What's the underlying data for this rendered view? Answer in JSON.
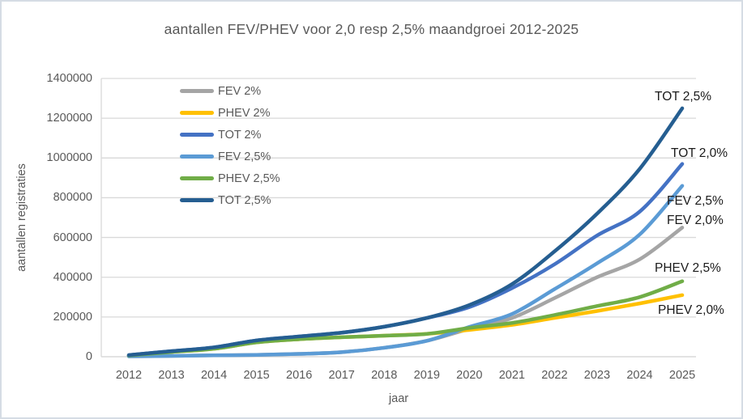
{
  "chart_data": {
    "type": "line",
    "title": "aantallen FEV/PHEV voor 2,0 resp 2,5% maandgroei 2012-2025",
    "xlabel": "jaar",
    "ylabel": "aantallen registraties",
    "x": [
      2012,
      2013,
      2014,
      2015,
      2016,
      2017,
      2018,
      2019,
      2020,
      2021,
      2022,
      2023,
      2024,
      2025
    ],
    "yticks": [
      0,
      200000,
      400000,
      600000,
      800000,
      1000000,
      1200000,
      1400000
    ],
    "ylim": [
      0,
      1400000
    ],
    "grid": true,
    "legend_position": "upper-left-inside",
    "series": [
      {
        "name": "FEV 2%",
        "color": "#A5A5A5",
        "values": [
          2000,
          4000,
          7000,
          9000,
          14000,
          23000,
          45000,
          80000,
          140000,
          195000,
          295000,
          400000,
          490000,
          650000
        ]
      },
      {
        "name": "PHEV 2%",
        "color": "#FFC000",
        "values": [
          6000,
          24000,
          40000,
          72000,
          88000,
          98000,
          106000,
          115000,
          135000,
          160000,
          195000,
          230000,
          268000,
          310000
        ]
      },
      {
        "name": "TOT 2%",
        "color": "#4472C4",
        "values": [
          8000,
          28000,
          47000,
          82000,
          102000,
          121000,
          151000,
          195000,
          250000,
          345000,
          465000,
          610000,
          730000,
          970000
        ]
      },
      {
        "name": "FEV 2,5%",
        "color": "#5B9BD5",
        "values": [
          2000,
          4000,
          7000,
          9000,
          14000,
          23000,
          45000,
          80000,
          150000,
          215000,
          340000,
          470000,
          615000,
          860000
        ]
      },
      {
        "name": "PHEV 2,5%",
        "color": "#70AD47",
        "values": [
          6000,
          24000,
          40000,
          72000,
          88000,
          98000,
          106000,
          115000,
          145000,
          170000,
          210000,
          255000,
          300000,
          380000
        ]
      },
      {
        "name": "TOT 2,5%",
        "color": "#255E91",
        "values": [
          8000,
          28000,
          47000,
          82000,
          102000,
          121000,
          151000,
          195000,
          260000,
          365000,
          530000,
          720000,
          945000,
          1250000
        ]
      }
    ],
    "annotations": [
      {
        "label": "TOT 2,5%",
        "x": 806,
        "y": 118
      },
      {
        "label": "TOT 2,0%",
        "x": 826,
        "y": 188
      },
      {
        "label": "FEV 2,5%",
        "x": 821,
        "y": 247
      },
      {
        "label": "FEV 2,0%",
        "x": 821,
        "y": 271
      },
      {
        "label": "PHEV 2,5%",
        "x": 806,
        "y": 330
      },
      {
        "label": "PHEV 2,0%",
        "x": 810,
        "y": 382
      }
    ],
    "styles": {
      "gridline_color": "#D9D9D9",
      "axis_line_color": "#D0D0D0",
      "text_color": "#595959",
      "annotation_color": "#1A1A1A",
      "border_color": "#D5DCE4",
      "background": "#FFFFFF",
      "line_width": 4.5
    }
  }
}
